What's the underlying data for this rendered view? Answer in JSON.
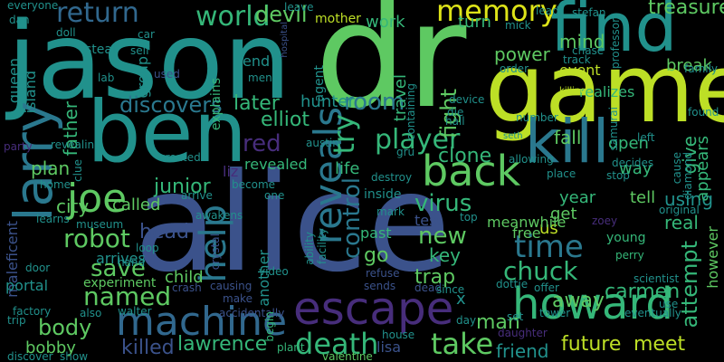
{
  "colors": {
    "background": "#000000",
    "palette": [
      "#440154",
      "#482878",
      "#3e4a89",
      "#31688e",
      "#26828e",
      "#1f9e89",
      "#35b779",
      "#6ece58",
      "#b5de2b",
      "#fde725"
    ]
  },
  "words": [
    {
      "text": "alice",
      "c": "#3b528b"
    },
    {
      "text": "jason",
      "c": "#21918c"
    },
    {
      "text": "dr",
      "c": "#5ec962"
    },
    {
      "text": "game",
      "c": "#bddf26"
    },
    {
      "text": "ben",
      "c": "#21918c"
    },
    {
      "text": "find",
      "c": "#21918c"
    },
    {
      "text": "kill",
      "c": "#2a788e"
    },
    {
      "text": "larry",
      "c": "#2a788e"
    },
    {
      "text": "howard",
      "c": "#35b779"
    },
    {
      "text": "escape",
      "c": "#472d7b"
    },
    {
      "text": "machine",
      "c": "#31688e"
    },
    {
      "text": "back",
      "c": "#5ec962"
    },
    {
      "text": "reveals",
      "c": "#2a788e"
    },
    {
      "text": "memory",
      "c": "#dde318"
    },
    {
      "text": "return",
      "c": "#31688e"
    },
    {
      "text": "world",
      "c": "#35b779"
    },
    {
      "text": "room",
      "c": "#2a788e"
    },
    {
      "text": "joe",
      "c": "#5ec962"
    },
    {
      "text": "help",
      "c": "#2a788e"
    },
    {
      "text": "time",
      "c": "#2a788e"
    },
    {
      "text": "player",
      "c": "#35b779"
    },
    {
      "text": "death",
      "c": "#35b779"
    },
    {
      "text": "take",
      "c": "#5ec962"
    },
    {
      "text": "attempt",
      "c": "#35b779"
    },
    {
      "text": "chuck",
      "c": "#35b779"
    },
    {
      "text": "robot",
      "c": "#5ec962"
    },
    {
      "text": "named",
      "c": "#5ec962"
    },
    {
      "text": "discovers",
      "c": "#2a788e"
    },
    {
      "text": "devil",
      "c": "#5ec962"
    },
    {
      "text": "treasure",
      "c": "#5ec962"
    },
    {
      "text": "control",
      "c": "#2a788e"
    },
    {
      "text": "try",
      "c": "#35b779"
    },
    {
      "text": "fight",
      "c": "#5ec962"
    },
    {
      "text": "red",
      "c": "#472d7b"
    },
    {
      "text": "save",
      "c": "#5ec962"
    },
    {
      "text": "body",
      "c": "#5ec962"
    },
    {
      "text": "killed",
      "c": "#3b528b"
    },
    {
      "text": "lawrence",
      "c": "#35b779"
    },
    {
      "text": "future",
      "c": "#bddf26"
    },
    {
      "text": "meet",
      "c": "#bddf26"
    },
    {
      "text": "carmen",
      "c": "#35b779"
    },
    {
      "text": "virus",
      "c": "#35b779"
    },
    {
      "text": "junior",
      "c": "#35b779"
    },
    {
      "text": "clone",
      "c": "#35b779"
    },
    {
      "text": "new",
      "c": "#5ec962"
    },
    {
      "text": "later",
      "c": "#35b779"
    },
    {
      "text": "elliot",
      "c": "#35b779"
    },
    {
      "text": "hunter",
      "c": "#21918c"
    },
    {
      "text": "father",
      "c": "#35b779"
    },
    {
      "text": "plan",
      "c": "#5ec962"
    },
    {
      "text": "city",
      "c": "#5ec962"
    },
    {
      "text": "head",
      "c": "#3b528b"
    },
    {
      "text": "mind",
      "c": "#5ec962"
    },
    {
      "text": "power",
      "c": "#5ec962"
    },
    {
      "text": "work",
      "c": "#35b779"
    },
    {
      "text": "turn",
      "c": "#35b779"
    },
    {
      "text": "travel",
      "c": "#35b779"
    },
    {
      "text": "fall",
      "c": "#5ec962"
    },
    {
      "text": "open",
      "c": "#35b779"
    },
    {
      "text": "way",
      "c": "#35b779"
    },
    {
      "text": "give",
      "c": "#35b779"
    },
    {
      "text": "using",
      "c": "#21918c"
    },
    {
      "text": "real",
      "c": "#35b779"
    },
    {
      "text": "however",
      "c": "#5ec962"
    },
    {
      "text": "appears",
      "c": "#35b779"
    },
    {
      "text": "break",
      "c": "#5ec962"
    },
    {
      "text": "event",
      "c": "#bddf26"
    },
    {
      "text": "realizes",
      "c": "#35b779"
    },
    {
      "text": "us",
      "c": "#bddf26"
    },
    {
      "text": "get",
      "c": "#5ec962"
    },
    {
      "text": "year",
      "c": "#35b779"
    },
    {
      "text": "tell",
      "c": "#5ec962"
    },
    {
      "text": "key",
      "c": "#35b779"
    },
    {
      "text": "trap",
      "c": "#5ec962"
    },
    {
      "text": "away",
      "c": "#5ec962"
    },
    {
      "text": "man",
      "c": "#5ec962"
    },
    {
      "text": "friend",
      "c": "#21918c"
    },
    {
      "text": "go",
      "c": "#5ec962"
    },
    {
      "text": "life",
      "c": "#35b779"
    },
    {
      "text": "test",
      "c": "#3b528b"
    },
    {
      "text": "past",
      "c": "#35b779"
    },
    {
      "text": "revealed",
      "c": "#35b779"
    },
    {
      "text": "child",
      "c": "#5ec962"
    },
    {
      "text": "experiment",
      "c": "#5ec962"
    },
    {
      "text": "another",
      "c": "#21918c"
    },
    {
      "text": "arrives",
      "c": "#21918c"
    },
    {
      "text": "called",
      "c": "#5ec962"
    },
    {
      "text": "maleficent",
      "c": "#3b528b"
    },
    {
      "text": "portal",
      "c": "#21918c"
    },
    {
      "text": "bobby",
      "c": "#5ec962"
    },
    {
      "text": "queen",
      "c": "#21918c"
    },
    {
      "text": "island",
      "c": "#21918c"
    },
    {
      "text": "group",
      "c": "#21918c"
    },
    {
      "text": "explains",
      "c": "#35b779"
    },
    {
      "text": "end",
      "c": "#21918c"
    },
    {
      "text": "steal",
      "c": "#21918c"
    },
    {
      "text": "free",
      "c": "#5ec962"
    },
    {
      "text": "meanwhile",
      "c": "#5ec962"
    },
    {
      "text": "young",
      "c": "#35b779"
    },
    {
      "text": "lisa",
      "c": "#3b528b"
    },
    {
      "text": "x",
      "c": "#21918c"
    },
    {
      "text": "liz",
      "c": "#472d7b"
    },
    {
      "text": "agent",
      "c": "#21918c"
    },
    {
      "text": "mother",
      "c": "#bddf26"
    },
    {
      "text": "mick",
      "c": "#21918c"
    },
    {
      "text": "dan",
      "c": "#21918c"
    },
    {
      "text": "doll",
      "c": "#21918c"
    },
    {
      "text": "leave",
      "c": "#21918c"
    },
    {
      "text": "self",
      "c": "#21918c"
    },
    {
      "text": "used",
      "c": "#3b528b"
    },
    {
      "text": "hospital",
      "c": "#3b528b"
    },
    {
      "text": "seth",
      "c": "#21918c"
    },
    {
      "text": "killing",
      "c": "#bddf26"
    },
    {
      "text": "austin",
      "c": "#21918c"
    },
    {
      "text": "destroy",
      "c": "#21918c"
    },
    {
      "text": "inside",
      "c": "#21918c"
    },
    {
      "text": "created",
      "c": "#21918c"
    },
    {
      "text": "arrive",
      "c": "#21918c"
    },
    {
      "text": "awakens",
      "c": "#21918c"
    },
    {
      "text": "museum",
      "c": "#21918c"
    },
    {
      "text": "crystal",
      "c": "#3b528b"
    },
    {
      "text": "causing",
      "c": "#3b528b"
    },
    {
      "text": "make",
      "c": "#3b528b"
    },
    {
      "text": "crash",
      "c": "#3b528b"
    },
    {
      "text": "accidentally",
      "c": "#3b528b"
    },
    {
      "text": "walter",
      "c": "#21918c"
    },
    {
      "text": "factory",
      "c": "#21918c"
    },
    {
      "text": "discover",
      "c": "#21918c"
    },
    {
      "text": "begin",
      "c": "#35b779"
    },
    {
      "text": "plant",
      "c": "#35b779"
    },
    {
      "text": "valentine",
      "c": "#5ec962"
    },
    {
      "text": "refuse",
      "c": "#3b528b"
    },
    {
      "text": "sends",
      "c": "#3b528b"
    },
    {
      "text": "dead",
      "c": "#3b528b"
    },
    {
      "text": "since",
      "c": "#21918c"
    },
    {
      "text": "dottie",
      "c": "#21918c"
    },
    {
      "text": "offer",
      "c": "#21918c"
    },
    {
      "text": "perry",
      "c": "#35b779"
    },
    {
      "text": "scientist",
      "c": "#21918c"
    },
    {
      "text": "tower",
      "c": "#21918c"
    },
    {
      "text": "eventually",
      "c": "#21918c"
    },
    {
      "text": "original",
      "c": "#21918c"
    },
    {
      "text": "use",
      "c": "#21918c"
    },
    {
      "text": "day",
      "c": "#21918c"
    },
    {
      "text": "daughter",
      "c": "#472d7b"
    },
    {
      "text": "house",
      "c": "#21918c"
    },
    {
      "text": "video",
      "c": "#21918c"
    },
    {
      "text": "become",
      "c": "#21918c"
    },
    {
      "text": "one",
      "c": "#21918c"
    },
    {
      "text": "ability",
      "c": "#21918c"
    },
    {
      "text": "facility",
      "c": "#21918c"
    },
    {
      "text": "everyone",
      "c": "#21918c"
    },
    {
      "text": "party",
      "c": "#472d7b"
    },
    {
      "text": "revealing",
      "c": "#21918c"
    },
    {
      "text": "clue",
      "c": "#21918c"
    },
    {
      "text": "home",
      "c": "#21918c"
    },
    {
      "text": "learns",
      "c": "#21918c"
    },
    {
      "text": "door",
      "c": "#21918c"
    },
    {
      "text": "trip",
      "c": "#21918c"
    },
    {
      "text": "also",
      "c": "#21918c"
    },
    {
      "text": "show",
      "c": "#21918c"
    },
    {
      "text": "lab",
      "c": "#21918c"
    },
    {
      "text": "men",
      "c": "#21918c"
    },
    {
      "text": "car",
      "c": "#21918c"
    },
    {
      "text": "hand",
      "c": "#21918c"
    },
    {
      "text": "loop",
      "c": "#21918c"
    },
    {
      "text": "zoey",
      "c": "#472d7b"
    },
    {
      "text": "top",
      "c": "#21918c"
    },
    {
      "text": "set",
      "c": "#21918c"
    },
    {
      "text": "stefan",
      "c": "#21918c"
    },
    {
      "text": "lead",
      "c": "#21918c"
    },
    {
      "text": "chase",
      "c": "#21918c"
    },
    {
      "text": "track",
      "c": "#21918c"
    },
    {
      "text": "order",
      "c": "#21918c"
    },
    {
      "text": "family",
      "c": "#21918c"
    },
    {
      "text": "found",
      "c": "#21918c"
    },
    {
      "text": "samurai",
      "c": "#21918c"
    },
    {
      "text": "left",
      "c": "#21918c"
    },
    {
      "text": "decides",
      "c": "#21918c"
    },
    {
      "text": "cause",
      "c": "#21918c"
    },
    {
      "text": "diamond",
      "c": "#21918c"
    },
    {
      "text": "stop",
      "c": "#21918c"
    },
    {
      "text": "place",
      "c": "#21918c"
    },
    {
      "text": "allowing",
      "c": "#21918c"
    },
    {
      "text": "number",
      "c": "#21918c"
    },
    {
      "text": "professor",
      "c": "#21918c"
    },
    {
      "text": "device",
      "c": "#21918c"
    },
    {
      "text": "hall",
      "c": "#21918c"
    },
    {
      "text": "die",
      "c": "#21918c"
    },
    {
      "text": "containing",
      "c": "#21918c"
    },
    {
      "text": "gru",
      "c": "#21918c"
    },
    {
      "text": "mark",
      "c": "#21918c"
    }
  ]
}
